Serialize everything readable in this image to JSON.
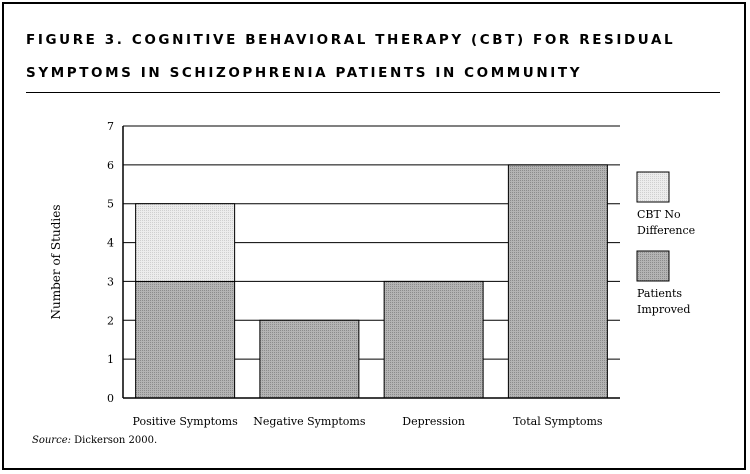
{
  "figure": {
    "title_line1": "FIGURE 3. COGNITIVE BEHAVIORAL THERAPY (CBT) FOR RESIDUAL",
    "title_line2": "SYMPTOMS IN SCHIZOPHRENIA PATIENTS IN COMMUNITY",
    "source_label": "Source:",
    "source_text": " Dickerson 2000."
  },
  "chart_data": {
    "type": "bar",
    "stacked": true,
    "categories": [
      "Positive Symptoms",
      "Negative Symptoms",
      "Depression",
      "Total Symptoms"
    ],
    "series": [
      {
        "name": "Patients Improved",
        "values": [
          3,
          2,
          3,
          6
        ],
        "color": "#a6a6a6"
      },
      {
        "name": "CBT No Difference",
        "values": [
          2,
          0,
          0,
          0
        ],
        "color": "#e3e3e3"
      }
    ],
    "ylabel": "Number of Studies",
    "ylim": [
      0,
      7
    ],
    "yticks": [
      0,
      1,
      2,
      3,
      4,
      5,
      6,
      7
    ],
    "grid": true,
    "legend_position": "right",
    "legend": [
      {
        "label_line1": "CBT No",
        "label_line2": "Difference",
        "color": "#e3e3e3"
      },
      {
        "label_line1": "Patients",
        "label_line2": "Improved",
        "color": "#a6a6a6"
      }
    ]
  }
}
